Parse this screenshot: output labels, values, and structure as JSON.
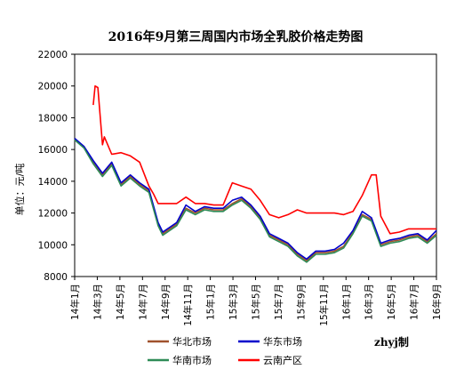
{
  "chart_data": {
    "type": "line",
    "title": "2016年9月第三周国内市场全乳胶价格走势图",
    "ylabel": "单位：元/吨",
    "ylim": [
      8000,
      22000
    ],
    "yticks": [
      "22000",
      "20000",
      "18000",
      "16000",
      "14000",
      "12000",
      "10000",
      "8000"
    ],
    "xticks": [
      "14年1月",
      "14年3月",
      "14年5月",
      "14年7月",
      "14年9月",
      "14年11月",
      "15年1月",
      "15年3月",
      "15年5月",
      "15年7月",
      "15年9月",
      "15年11月",
      "16年1月",
      "16年3月",
      "16年5月",
      "16年7月",
      "16年9月"
    ],
    "credit": "zhyj制",
    "series": [
      {
        "name": "华北市场",
        "color": "#a0522d",
        "values": [
          [
            0,
            16600
          ],
          [
            1,
            16200
          ],
          [
            2,
            15200
          ],
          [
            3,
            14400
          ],
          [
            4,
            15100
          ],
          [
            5,
            13800
          ],
          [
            6,
            14300
          ],
          [
            7,
            13800
          ],
          [
            8,
            13400
          ],
          [
            9,
            11300
          ],
          [
            9.5,
            10700
          ],
          [
            10,
            10900
          ],
          [
            11,
            11300
          ],
          [
            12,
            12300
          ],
          [
            13,
            12000
          ],
          [
            14,
            12300
          ],
          [
            15,
            12200
          ],
          [
            16,
            12200
          ],
          [
            17,
            12600
          ],
          [
            18,
            12900
          ],
          [
            19,
            12400
          ],
          [
            20,
            11700
          ],
          [
            21,
            10600
          ],
          [
            22,
            10300
          ],
          [
            23,
            10000
          ],
          [
            24,
            9400
          ],
          [
            25,
            9000
          ],
          [
            26,
            9500
          ],
          [
            27,
            9500
          ],
          [
            28,
            9600
          ],
          [
            29,
            9900
          ],
          [
            30,
            10800
          ],
          [
            31,
            11900
          ],
          [
            32,
            11600
          ],
          [
            33,
            10000
          ],
          [
            34,
            10200
          ],
          [
            35,
            10300
          ],
          [
            36,
            10500
          ],
          [
            37,
            10600
          ],
          [
            38,
            10200
          ],
          [
            39,
            10700
          ]
        ]
      },
      {
        "name": "华东市场",
        "color": "#0000cc",
        "values": [
          [
            0,
            16700
          ],
          [
            1,
            16200
          ],
          [
            2,
            15300
          ],
          [
            3,
            14500
          ],
          [
            4,
            15200
          ],
          [
            5,
            13900
          ],
          [
            6,
            14400
          ],
          [
            7,
            13900
          ],
          [
            8,
            13500
          ],
          [
            9,
            11400
          ],
          [
            9.5,
            10800
          ],
          [
            10,
            11000
          ],
          [
            11,
            11400
          ],
          [
            12,
            12500
          ],
          [
            13,
            12100
          ],
          [
            14,
            12400
          ],
          [
            15,
            12300
          ],
          [
            16,
            12300
          ],
          [
            17,
            12800
          ],
          [
            18,
            13000
          ],
          [
            19,
            12500
          ],
          [
            20,
            11800
          ],
          [
            21,
            10700
          ],
          [
            22,
            10400
          ],
          [
            23,
            10100
          ],
          [
            24,
            9500
          ],
          [
            25,
            9100
          ],
          [
            26,
            9600
          ],
          [
            27,
            9600
          ],
          [
            28,
            9700
          ],
          [
            29,
            10100
          ],
          [
            30,
            10900
          ],
          [
            31,
            12100
          ],
          [
            32,
            11700
          ],
          [
            33,
            10100
          ],
          [
            34,
            10300
          ],
          [
            35,
            10400
          ],
          [
            36,
            10600
          ],
          [
            37,
            10700
          ],
          [
            38,
            10300
          ],
          [
            39,
            10900
          ]
        ]
      },
      {
        "name": "华南市场",
        "color": "#2e8b57",
        "values": [
          [
            0,
            16600
          ],
          [
            1,
            16100
          ],
          [
            2,
            15100
          ],
          [
            3,
            14300
          ],
          [
            4,
            15000
          ],
          [
            5,
            13700
          ],
          [
            6,
            14200
          ],
          [
            7,
            13700
          ],
          [
            8,
            13300
          ],
          [
            9,
            11200
          ],
          [
            9.5,
            10600
          ],
          [
            10,
            10800
          ],
          [
            11,
            11200
          ],
          [
            12,
            12200
          ],
          [
            13,
            11900
          ],
          [
            14,
            12200
          ],
          [
            15,
            12100
          ],
          [
            16,
            12100
          ],
          [
            17,
            12500
          ],
          [
            18,
            12800
          ],
          [
            19,
            12300
          ],
          [
            20,
            11600
          ],
          [
            21,
            10500
          ],
          [
            22,
            10200
          ],
          [
            23,
            9900
          ],
          [
            24,
            9300
          ],
          [
            25,
            8900
          ],
          [
            26,
            9400
          ],
          [
            27,
            9400
          ],
          [
            28,
            9500
          ],
          [
            29,
            9800
          ],
          [
            30,
            10700
          ],
          [
            31,
            11800
          ],
          [
            32,
            11500
          ],
          [
            33,
            9900
          ],
          [
            34,
            10100
          ],
          [
            35,
            10200
          ],
          [
            36,
            10400
          ],
          [
            37,
            10500
          ],
          [
            38,
            10100
          ],
          [
            39,
            10600
          ]
        ]
      },
      {
        "name": "云南产区",
        "color": "#ff0000",
        "values": [
          [
            2,
            18800
          ],
          [
            2.2,
            20000
          ],
          [
            2.5,
            19900
          ],
          [
            3,
            16300
          ],
          [
            3.2,
            16800
          ],
          [
            4,
            15700
          ],
          [
            5,
            15800
          ],
          [
            6,
            15600
          ],
          [
            7,
            15200
          ],
          [
            8,
            13700
          ],
          [
            8.5,
            13200
          ],
          [
            9,
            12600
          ],
          [
            11,
            12600
          ],
          [
            12,
            13000
          ],
          [
            13,
            12600
          ],
          [
            14,
            12600
          ],
          [
            15,
            12500
          ],
          [
            16,
            12500
          ],
          [
            17,
            13900
          ],
          [
            18,
            13700
          ],
          [
            19,
            13500
          ],
          [
            20,
            12800
          ],
          [
            21,
            11900
          ],
          [
            22,
            11700
          ],
          [
            23,
            11900
          ],
          [
            24,
            12200
          ],
          [
            25,
            12000
          ],
          [
            26,
            12000
          ],
          [
            27,
            12000
          ],
          [
            28,
            12000
          ],
          [
            29,
            11900
          ],
          [
            30,
            12100
          ],
          [
            31,
            13100
          ],
          [
            32,
            14400
          ],
          [
            32.5,
            14400
          ],
          [
            33,
            11800
          ],
          [
            34,
            10700
          ],
          [
            35,
            10800
          ],
          [
            36,
            11000
          ],
          [
            37,
            11000
          ],
          [
            38,
            11000
          ],
          [
            39,
            11000
          ]
        ]
      }
    ],
    "legend": "bottom"
  }
}
